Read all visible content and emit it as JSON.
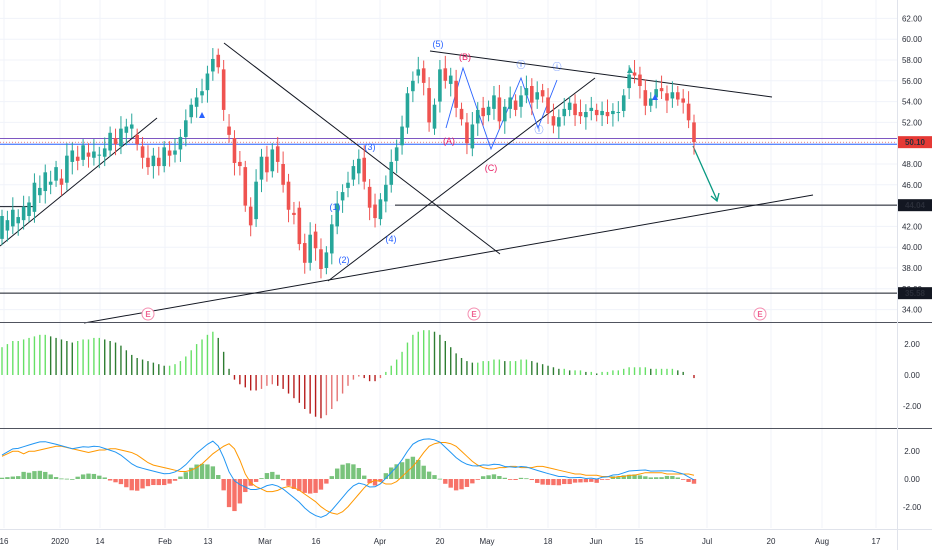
{
  "chart_data": {
    "type": "candlestick",
    "price_axis": {
      "ticks": [
        "62.00",
        "60.00",
        "58.00",
        "56.00",
        "54.00",
        "52.00",
        "50.00",
        "48.00",
        "46.00",
        "44.00",
        "42.00",
        "40.00",
        "38.00",
        "36.00",
        "34.00"
      ],
      "range": [
        33,
        63
      ]
    },
    "time_axis": {
      "ticks": [
        "16",
        "2020",
        "14",
        "Feb",
        "13",
        "Mar",
        "16",
        "Apr",
        "20",
        "May",
        "18",
        "Jun",
        "15",
        "Jul",
        "20",
        "Aug",
        "17"
      ]
    },
    "price_labels": [
      {
        "text": "50.10",
        "value": 50.1,
        "color": "#e53935"
      },
      {
        "text": "44.04",
        "value": 44.04,
        "color": "#131722"
      },
      {
        "text": "35.58",
        "value": 35.58,
        "color": "#131722"
      }
    ],
    "candles": [
      [
        40.8,
        43.0
      ],
      [
        41.6,
        42.6
      ],
      [
        42.0,
        43.6
      ],
      [
        42.3,
        42.9
      ],
      [
        42.6,
        43.9
      ],
      [
        43.0,
        44.3
      ],
      [
        43.4,
        46.2
      ],
      [
        45.0,
        45.7
      ],
      [
        45.4,
        47.2
      ],
      [
        46.0,
        46.3
      ],
      [
        46.4,
        47.7
      ],
      [
        46.6,
        46.0
      ],
      [
        46.2,
        48.8
      ],
      [
        48.2,
        49.3
      ],
      [
        48.7,
        48.3
      ],
      [
        48.4,
        49.8
      ],
      [
        49.1,
        48.7
      ],
      [
        48.6,
        49.2
      ],
      [
        48.8,
        48.9
      ],
      [
        48.7,
        49.5
      ],
      [
        49.3,
        51.0
      ],
      [
        50.5,
        49.9
      ],
      [
        49.7,
        51.4
      ],
      [
        51.0,
        51.6
      ],
      [
        51.4,
        51.8
      ],
      [
        50.8,
        49.9
      ],
      [
        49.7,
        48.6
      ],
      [
        48.6,
        47.7
      ],
      [
        47.8,
        48.8
      ],
      [
        48.6,
        47.8
      ],
      [
        47.8,
        49.6
      ],
      [
        49.3,
        48.8
      ],
      [
        48.9,
        49.3
      ],
      [
        49.4,
        50.6
      ],
      [
        50.6,
        52.2
      ],
      [
        52.5,
        53.7
      ],
      [
        53.5,
        54.4
      ],
      [
        54.6,
        55.0
      ],
      [
        55.1,
        56.7
      ],
      [
        56.9,
        58.1
      ],
      [
        58.5,
        57.3
      ],
      [
        57.1,
        53.2
      ],
      [
        51.6,
        50.8
      ],
      [
        50.5,
        48.1
      ],
      [
        48.2,
        47.8
      ],
      [
        47.7,
        44.0
      ],
      [
        43.9,
        42.1
      ],
      [
        42.7,
        46.3
      ],
      [
        46.5,
        48.7
      ],
      [
        48.7,
        47.2
      ],
      [
        47.3,
        49.4
      ],
      [
        49.7,
        48.2
      ],
      [
        48.0,
        46.0
      ],
      [
        46.3,
        43.6
      ],
      [
        43.3,
        43.1
      ],
      [
        43.8,
        40.3
      ],
      [
        40.4,
        38.5
      ],
      [
        38.5,
        41.2
      ],
      [
        41.5,
        39.9
      ],
      [
        39.8,
        37.9
      ],
      [
        38.0,
        39.5
      ],
      [
        39.4,
        42.2
      ],
      [
        42.0,
        44.2
      ],
      [
        44.5,
        45.3
      ],
      [
        45.7,
        46.2
      ],
      [
        46.5,
        47.8
      ],
      [
        47.1,
        48.5
      ],
      [
        48.6,
        46.3
      ],
      [
        45.8,
        43.8
      ],
      [
        44.1,
        42.8
      ],
      [
        42.7,
        44.6
      ],
      [
        44.4,
        46.0
      ],
      [
        46.0,
        48.2
      ],
      [
        48.3,
        49.6
      ],
      [
        49.8,
        51.6
      ],
      [
        51.5,
        54.8
      ],
      [
        55.0,
        56.0
      ],
      [
        56.5,
        57.1
      ],
      [
        57.2,
        55.8
      ],
      [
        55.3,
        52.0
      ],
      [
        51.4,
        53.7
      ],
      [
        54.0,
        57.1
      ],
      [
        57.2,
        56.0
      ],
      [
        55.7,
        56.5
      ],
      [
        56.0,
        53.4
      ],
      [
        53.3,
        52.3
      ],
      [
        52.0,
        50.0
      ],
      [
        49.5,
        51.8
      ],
      [
        51.9,
        53.2
      ],
      [
        53.4,
        52.6
      ],
      [
        52.7,
        53.5
      ],
      [
        53.3,
        54.6
      ],
      [
        54.4,
        52.1
      ],
      [
        52.1,
        53.5
      ],
      [
        53.3,
        54.4
      ],
      [
        54.1,
        53.2
      ],
      [
        53.5,
        54.6
      ],
      [
        54.6,
        55.3
      ],
      [
        55.5,
        53.9
      ],
      [
        54.2,
        54.9
      ],
      [
        55.1,
        54.5
      ],
      [
        54.4,
        52.9
      ],
      [
        52.6,
        51.7
      ],
      [
        51.6,
        52.5
      ],
      [
        52.6,
        53.3
      ],
      [
        53.2,
        53.9
      ],
      [
        53.8,
        52.7
      ],
      [
        53.0,
        52.6
      ],
      [
        52.5,
        53.0
      ],
      [
        53.1,
        53.4
      ],
      [
        53.2,
        52.7
      ],
      [
        52.7,
        53.1
      ],
      [
        53.0,
        52.6
      ],
      [
        52.8,
        53.1
      ],
      [
        53.0,
        53.0
      ],
      [
        53.1,
        54.6
      ],
      [
        55.3,
        56.6
      ],
      [
        56.8,
        56.5
      ],
      [
        56.6,
        55.5
      ],
      [
        55.1,
        53.6
      ],
      [
        53.6,
        54.3
      ],
      [
        54.4,
        55.2
      ],
      [
        55.3,
        55.0
      ],
      [
        54.8,
        54.1
      ],
      [
        54.3,
        54.9
      ],
      [
        54.9,
        54.2
      ],
      [
        54.3,
        53.9
      ],
      [
        53.8,
        52.2
      ],
      [
        52.0,
        50.1
      ]
    ],
    "trendlines_text": [],
    "waves": [
      {
        "text": "(1)",
        "color": "#2962ff"
      },
      {
        "text": "(2)",
        "color": "#2962ff"
      },
      {
        "text": "(3)",
        "color": "#2962ff"
      },
      {
        "text": "(4)",
        "color": "#2962ff"
      },
      {
        "text": "(5)",
        "color": "#2962ff"
      },
      {
        "text": "(A)",
        "color": "#e91e63"
      },
      {
        "text": "(B)",
        "color": "#e91e63"
      },
      {
        "text": "(C)",
        "color": "#e91e63"
      },
      {
        "text": "ⓘ",
        "color": "#2962ff"
      },
      {
        "text": "ⓘ",
        "color": "#2962ff"
      },
      {
        "text": "ⓘ",
        "color": "#2962ff"
      }
    ],
    "earnings_badges": [
      "E",
      "E",
      "E"
    ],
    "histogram1": {
      "ticks": [
        "2.00",
        "0.00",
        "-2.00"
      ],
      "range": [
        -3.3,
        3.3
      ],
      "values": [
        1.8,
        2.0,
        2.2,
        2.2,
        2.3,
        2.4,
        2.5,
        2.6,
        2.6,
        2.5,
        2.4,
        2.3,
        2.2,
        2.1,
        2.2,
        2.3,
        2.3,
        2.4,
        2.4,
        2.3,
        2.2,
        2.1,
        1.9,
        1.6,
        1.3,
        1.1,
        1.0,
        0.9,
        0.8,
        0.7,
        0.6,
        0.6,
        0.7,
        0.9,
        1.2,
        1.6,
        2.0,
        2.3,
        2.6,
        2.8,
        2.4,
        1.5,
        0.4,
        -0.3,
        -0.6,
        -0.8,
        -1.0,
        -1.0,
        -0.9,
        -0.7,
        -0.6,
        -0.7,
        -0.9,
        -1.2,
        -1.5,
        -1.8,
        -2.2,
        -2.5,
        -2.7,
        -2.8,
        -2.6,
        -2.2,
        -1.7,
        -1.2,
        -0.7,
        -0.3,
        -0.1,
        -0.2,
        -0.4,
        -0.4,
        -0.2,
        0.2,
        0.6,
        1.0,
        1.5,
        2.1,
        2.6,
        2.8,
        2.9,
        2.9,
        2.8,
        2.6,
        2.2,
        1.8,
        1.4,
        1.1,
        0.9,
        0.8,
        0.8,
        0.9,
        0.9,
        1.0,
        1.0,
        0.9,
        0.9,
        0.9,
        1.0,
        1.0,
        0.9,
        0.8,
        0.7,
        0.6,
        0.5,
        0.4,
        0.4,
        0.3,
        0.3,
        0.3,
        0.2,
        0.2,
        0.1,
        0.2,
        0.2,
        0.3,
        0.3,
        0.4,
        0.5,
        0.5,
        0.5,
        0.5,
        0.4,
        0.4,
        0.4,
        0.4,
        0.4,
        0.3,
        0.2,
        0.0,
        -0.2
      ]
    },
    "oscillator2": {
      "ticks": [
        "2.00",
        "0.00",
        "-2.00"
      ],
      "range": [
        -3.5,
        3.5
      ]
    }
  }
}
